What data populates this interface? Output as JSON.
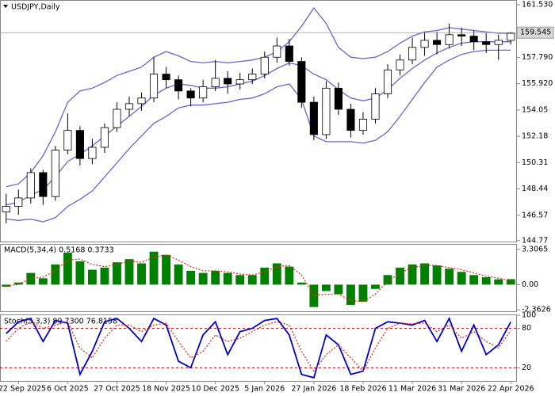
{
  "chart_data": [
    {
      "type": "candlestick",
      "title": "USDJPY,Daily",
      "categories": [
        null,
        "22 Sep 2025",
        null,
        null,
        null,
        "6 Oct 2025",
        null,
        null,
        null,
        "27 Oct 2025",
        null,
        null,
        null,
        "18 Nov 2025",
        null,
        null,
        null,
        "10 Dec 2025",
        null,
        null,
        null,
        "5 Jan 2026",
        null,
        null,
        null,
        "27 Jan 2026",
        null,
        null,
        null,
        "18 Feb 2026",
        null,
        null,
        null,
        "11 Mar 2026",
        null,
        null,
        null,
        "31 Mar 2026",
        null,
        null,
        null,
        "22 Apr 2026"
      ],
      "open": [
        146.8,
        147.2,
        147.8,
        149.6,
        147.9,
        151.2,
        152.6,
        150.6,
        151.4,
        152.8,
        154.1,
        154.5,
        154.9,
        156.6,
        156.2,
        155.4,
        154.9,
        155.7,
        156.3,
        155.9,
        156.2,
        156.6,
        157.8,
        158.6,
        157.5,
        154.6,
        152.3,
        155.6,
        154.1,
        152.6,
        153.4,
        155.2,
        156.9,
        157.6,
        158.5,
        159.0,
        158.7,
        159.4,
        159.3,
        158.9,
        158.7,
        159.0
      ],
      "high": [
        148.1,
        148.4,
        149.9,
        149.8,
        151.5,
        153.8,
        152.9,
        152.0,
        153.1,
        154.6,
        155.0,
        155.3,
        157.8,
        157.1,
        156.5,
        155.6,
        156.2,
        157.6,
        156.8,
        156.7,
        157.0,
        158.2,
        159.2,
        159.1,
        157.8,
        155.0,
        156.1,
        156.0,
        154.5,
        153.9,
        155.6,
        157.3,
        158.0,
        159.2,
        159.6,
        159.6,
        160.2,
        159.9,
        159.7,
        159.5,
        159.4,
        159.6
      ],
      "low": [
        146.0,
        146.6,
        147.4,
        147.3,
        147.6,
        150.9,
        150.1,
        150.2,
        151.0,
        152.5,
        153.6,
        154.0,
        154.6,
        155.6,
        154.8,
        154.3,
        154.6,
        155.4,
        155.2,
        155.5,
        155.9,
        156.3,
        157.4,
        157.2,
        154.2,
        151.9,
        152.0,
        153.7,
        152.1,
        152.3,
        153.1,
        154.9,
        156.5,
        157.3,
        157.9,
        158.0,
        158.4,
        158.6,
        158.3,
        158.1,
        157.6,
        158.7
      ],
      "close": [
        147.2,
        147.8,
        149.6,
        147.9,
        151.2,
        152.6,
        150.6,
        151.4,
        152.8,
        154.1,
        154.5,
        154.9,
        156.6,
        156.2,
        155.4,
        154.9,
        155.7,
        156.3,
        155.9,
        156.2,
        156.6,
        157.8,
        158.6,
        157.5,
        154.6,
        152.3,
        155.6,
        154.1,
        152.6,
        153.4,
        155.2,
        156.9,
        157.6,
        158.5,
        159.0,
        158.7,
        159.4,
        159.3,
        158.9,
        158.7,
        159.0,
        159.5
      ],
      "up_color": "#ffffff",
      "down_color": "#000000",
      "outline_color": "#000000",
      "bands": {
        "color": "#6b63c9",
        "upper": [
          148.6,
          148.8,
          149.6,
          150.8,
          152.5,
          154.6,
          155.4,
          155.6,
          156.0,
          156.5,
          156.8,
          157.1,
          157.8,
          158.2,
          157.9,
          157.5,
          157.4,
          157.5,
          157.4,
          157.5,
          157.6,
          157.8,
          158.2,
          158.9,
          160.0,
          161.3,
          160.2,
          158.5,
          157.8,
          157.7,
          157.8,
          158.2,
          158.8,
          159.3,
          159.6,
          159.7,
          159.9,
          159.8,
          159.7,
          159.6,
          159.5,
          159.5
        ],
        "middle": [
          147.3,
          147.5,
          148.0,
          148.4,
          149.3,
          150.4,
          150.9,
          151.5,
          152.2,
          152.9,
          153.6,
          154.3,
          155.1,
          155.6,
          155.9,
          155.8,
          155.6,
          155.6,
          155.7,
          155.9,
          156.1,
          156.5,
          157.0,
          157.4,
          157.2,
          156.6,
          156.2,
          155.5,
          154.9,
          154.7,
          154.9,
          155.5,
          156.3,
          157.0,
          157.6,
          158.1,
          158.5,
          158.8,
          158.9,
          158.9,
          158.9,
          158.9
        ],
        "lower": [
          146.3,
          146.2,
          146.3,
          146.1,
          146.4,
          147.2,
          147.7,
          148.3,
          149.3,
          150.3,
          151.3,
          152.2,
          153.1,
          153.6,
          154.2,
          154.4,
          154.4,
          154.5,
          154.6,
          154.8,
          154.9,
          155.2,
          155.7,
          155.9,
          154.8,
          152.2,
          151.8,
          151.8,
          151.8,
          151.7,
          151.9,
          152.5,
          153.6,
          154.8,
          156.0,
          157.1,
          157.6,
          158.0,
          158.2,
          158.3,
          158.3,
          158.3
        ]
      },
      "last_price": 159.545,
      "ylim": [
        144.7,
        161.81
      ],
      "yticks": [
        {
          "value": 161.53,
          "label": "161.530"
        },
        {
          "value": 157.79,
          "label": "157.790"
        },
        {
          "value": 155.92,
          "label": "155.920"
        },
        154.05,
        152.18,
        150.31,
        148.44,
        146.57,
        144.77
      ]
    },
    {
      "type": "bar",
      "title": "MACD(5,34,4) 0.5168 0.3733",
      "color": "#008000",
      "values": [
        -0.2,
        0.2,
        1.1,
        0.6,
        1.9,
        3.0,
        2.2,
        1.4,
        1.6,
        2.1,
        2.4,
        2.0,
        3.1,
        2.8,
        1.9,
        1.3,
        1.1,
        1.3,
        1.1,
        0.9,
        0.9,
        1.6,
        2.0,
        1.7,
        0.2,
        -2.1,
        -0.6,
        -0.9,
        -1.9,
        -1.6,
        -0.4,
        0.9,
        1.6,
        1.9,
        2.0,
        1.8,
        1.5,
        1.2,
        0.9,
        0.7,
        0.5,
        0.5168
      ],
      "signal": {
        "color": "#e0301e",
        "values": [
          -0.1,
          0.0,
          0.6,
          0.7,
          1.3,
          2.3,
          2.4,
          1.9,
          1.7,
          1.9,
          2.2,
          2.1,
          2.6,
          2.8,
          2.3,
          1.7,
          1.3,
          1.3,
          1.2,
          1.0,
          0.9,
          1.2,
          1.7,
          1.8,
          0.9,
          -1.0,
          -0.9,
          -0.9,
          -1.5,
          -1.6,
          -0.9,
          0.3,
          1.1,
          1.6,
          1.8,
          1.8,
          1.6,
          1.4,
          1.1,
          0.8,
          0.6,
          0.3733
        ]
      },
      "ylim": [
        -2.5,
        3.75
      ],
      "yticks": [
        3.3065,
        {
          "value": 0,
          "label": "0.00"
        },
        -2.3626
      ]
    },
    {
      "type": "line",
      "title": "Stoch(5,3,3) 89.7300 76.8158",
      "series": [
        {
          "color": "#0000c8",
          "values": [
            72,
            90,
            95,
            60,
            92,
            88,
            10,
            45,
            90,
            95,
            80,
            60,
            95,
            85,
            30,
            20,
            70,
            90,
            40,
            75,
            80,
            92,
            95,
            70,
            10,
            5,
            70,
            55,
            10,
            15,
            80,
            90,
            88,
            85,
            92,
            60,
            95,
            45,
            85,
            40,
            55,
            89.73
          ]
        },
        {
          "color": "#e0301e",
          "dashed": true,
          "values": [
            60,
            80,
            90,
            80,
            85,
            90,
            50,
            35,
            65,
            85,
            85,
            75,
            85,
            88,
            60,
            35,
            45,
            70,
            60,
            65,
            75,
            85,
            90,
            85,
            45,
            15,
            40,
            55,
            35,
            15,
            50,
            80,
            88,
            87,
            88,
            75,
            85,
            65,
            75,
            60,
            50,
            76.8158
          ]
        }
      ],
      "levels": [
        80,
        20
      ],
      "level_color": "#b00000",
      "ylim": [
        0,
        100
      ],
      "yticks": [
        100,
        80,
        20
      ]
    }
  ]
}
